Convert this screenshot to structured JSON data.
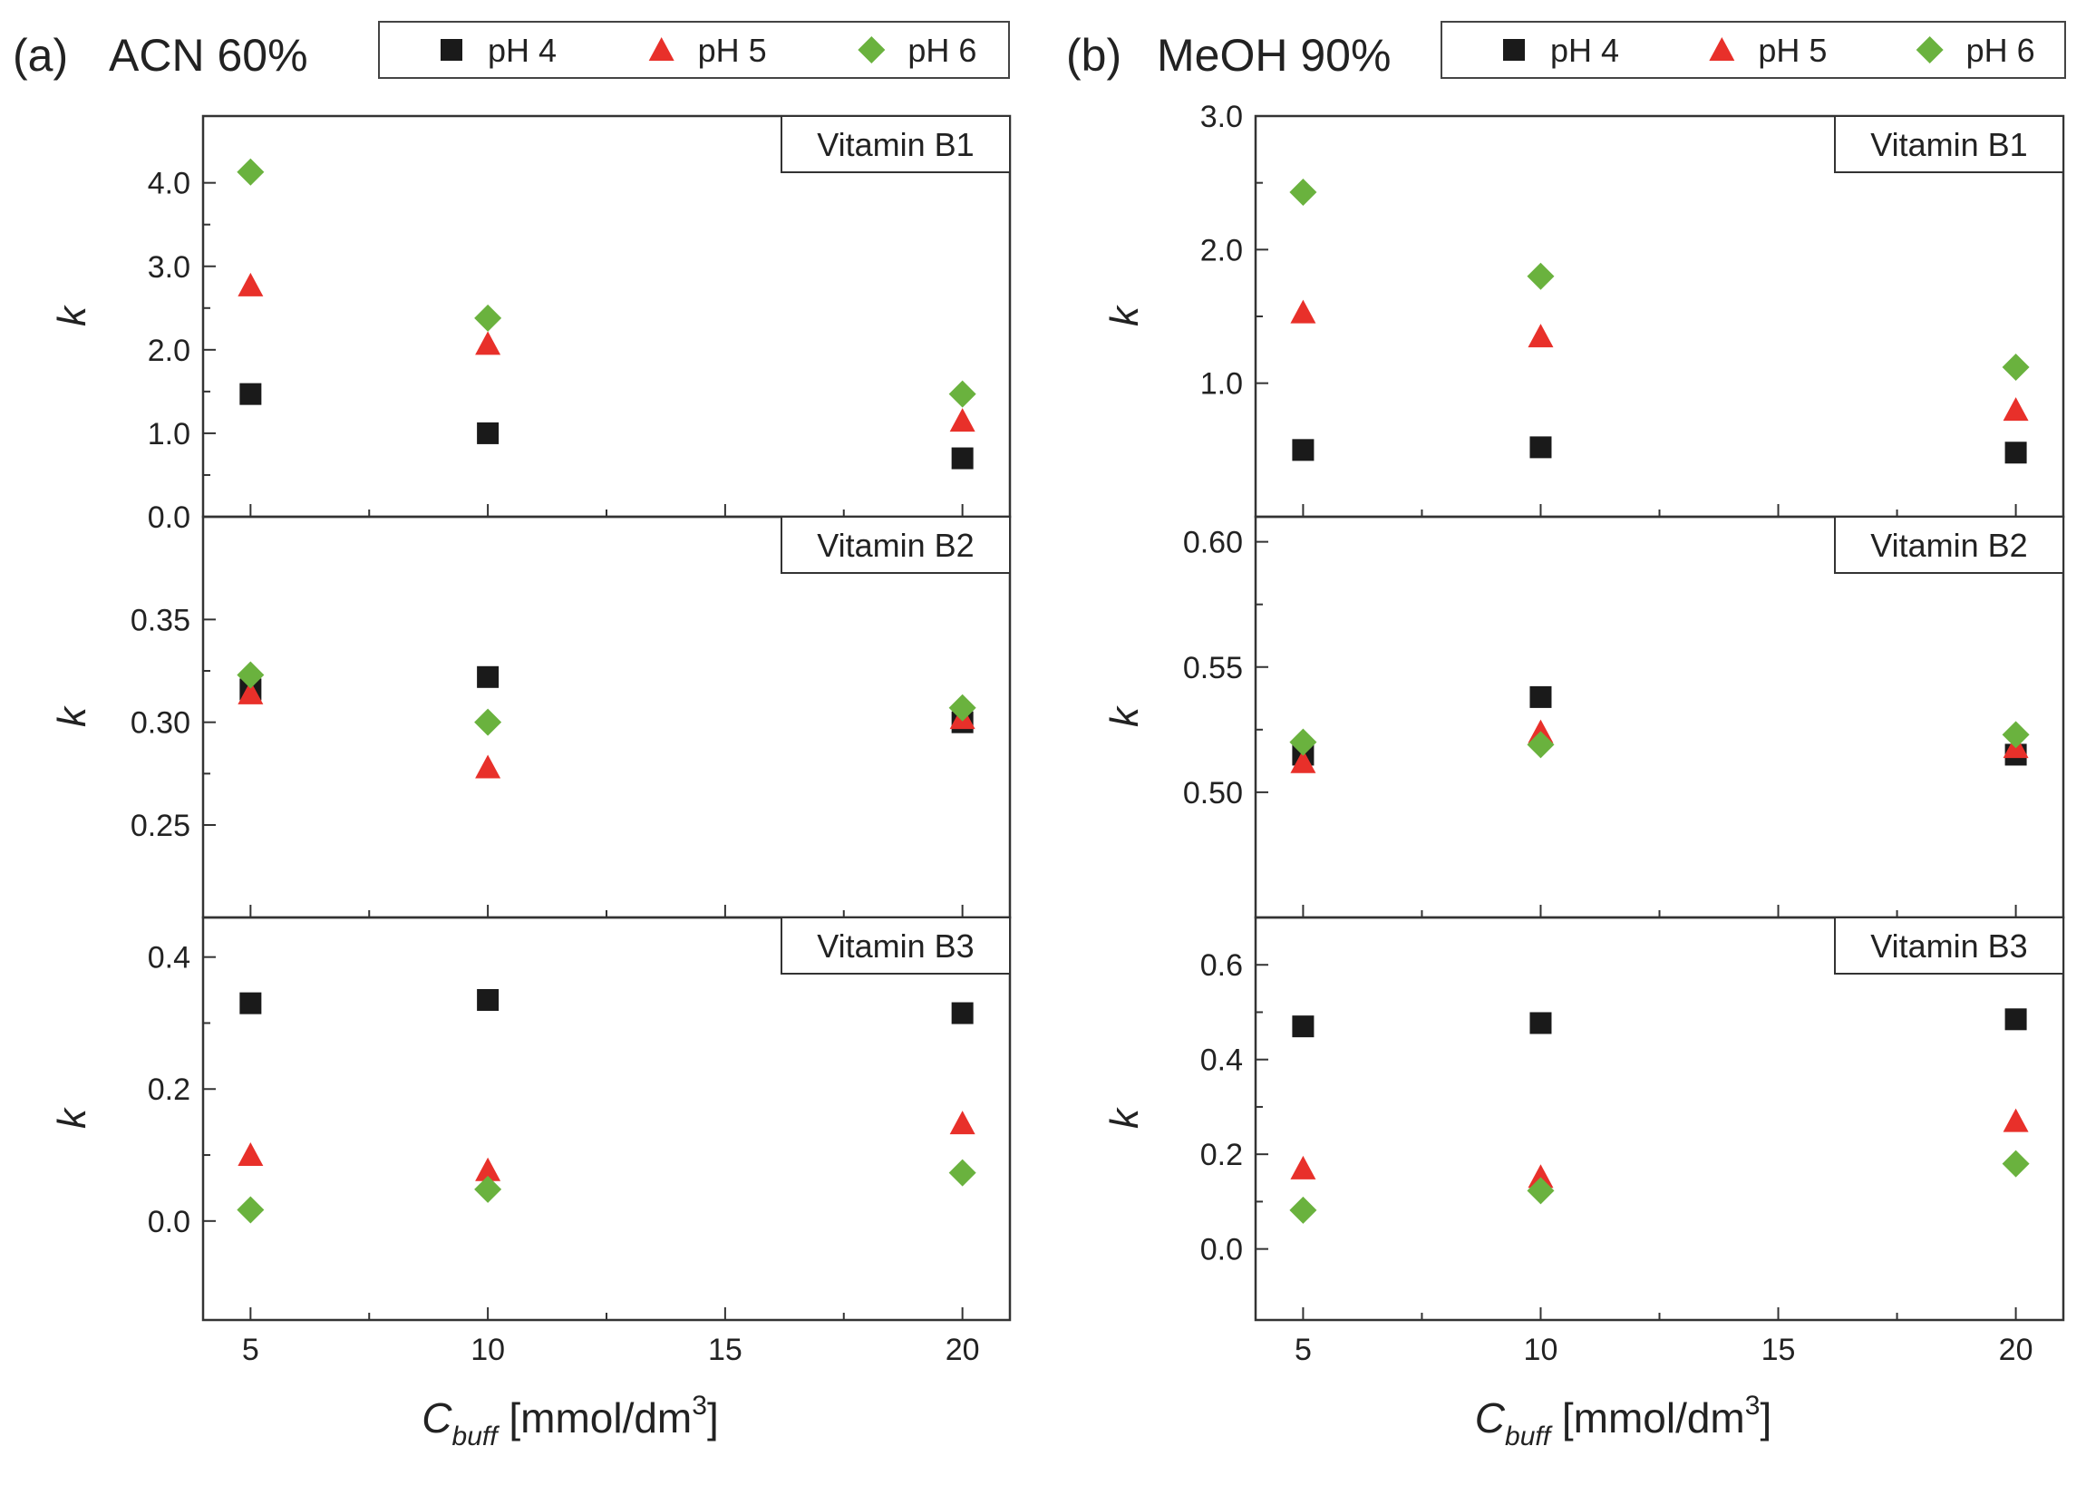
{
  "figure": {
    "x_label_main": "C",
    "x_label_sub": "buff",
    "x_label_unit": " [mmol/dm",
    "x_label_sup": "3",
    "x_label_close": "]",
    "y_label": "k"
  },
  "legend": {
    "entries": [
      {
        "label": "pH 4",
        "marker": "square",
        "color": "#1a1a1a"
      },
      {
        "label": "pH 5",
        "marker": "triangle",
        "color": "#e8302a"
      },
      {
        "label": "pH 6",
        "marker": "diamond",
        "color": "#6ab23e"
      }
    ]
  },
  "chart_data": [
    {
      "type": "scatter",
      "panel": "(a)",
      "title": "ACN 60%",
      "x_ticks": [
        5,
        10,
        15,
        20
      ],
      "x_tick_labels": [
        "5",
        "10",
        "15",
        "20"
      ],
      "xlim": [
        4,
        21
      ],
      "subplots": [
        {
          "label": "Vitamin B1",
          "ylim": [
            0,
            4.8
          ],
          "y_ticks": [
            0,
            1,
            2,
            3,
            4
          ],
          "y_tick_labels": [
            "0.0",
            "1.0",
            "2.0",
            "3.0",
            "4.0"
          ],
          "x": [
            5,
            10,
            20
          ],
          "series": [
            {
              "name": "pH 4",
              "values": [
                1.47,
                1.0,
                0.7
              ]
            },
            {
              "name": "pH 5",
              "values": [
                2.77,
                2.07,
                1.15
              ]
            },
            {
              "name": "pH 6",
              "values": [
                4.13,
                2.38,
                1.47
              ]
            }
          ]
        },
        {
          "label": "Vitamin B2",
          "ylim": [
            0.205,
            0.4
          ],
          "y_ticks": [
            0.25,
            0.3,
            0.35
          ],
          "y_tick_labels": [
            "0.25",
            "0.30",
            "0.35"
          ],
          "x": [
            5,
            10,
            20
          ],
          "series": [
            {
              "name": "pH 4",
              "values": [
                0.316,
                0.322,
                0.3
              ]
            },
            {
              "name": "pH 5",
              "values": [
                0.314,
                0.278,
                0.302
              ]
            },
            {
              "name": "pH 6",
              "values": [
                0.323,
                0.3,
                0.307
              ]
            }
          ]
        },
        {
          "label": "Vitamin B3",
          "ylim": [
            -0.15,
            0.46
          ],
          "y_ticks": [
            0,
            0.2,
            0.4
          ],
          "y_tick_labels": [
            "0.0",
            "0.2",
            "0.4"
          ],
          "x": [
            5,
            10,
            20
          ],
          "series": [
            {
              "name": "pH 4",
              "values": [
                0.33,
                0.335,
                0.315
              ]
            },
            {
              "name": "pH 5",
              "values": [
                0.1,
                0.077,
                0.148
              ]
            },
            {
              "name": "pH 6",
              "values": [
                0.017,
                0.048,
                0.073
              ]
            }
          ]
        }
      ]
    },
    {
      "type": "scatter",
      "panel": "(b)",
      "title": "MeOH 90%",
      "x_ticks": [
        5,
        10,
        15,
        20
      ],
      "x_tick_labels": [
        "5",
        "10",
        "15",
        "20"
      ],
      "xlim": [
        4,
        21
      ],
      "subplots": [
        {
          "label": "Vitamin B1",
          "ylim": [
            0,
            3.0
          ],
          "y_ticks": [
            1,
            2,
            3
          ],
          "y_tick_labels": [
            "1.0",
            "2.0",
            "3.0"
          ],
          "x": [
            5,
            10,
            20
          ],
          "series": [
            {
              "name": "pH 4",
              "values": [
                0.5,
                0.52,
                0.48
              ]
            },
            {
              "name": "pH 5",
              "values": [
                1.53,
                1.35,
                0.8
              ]
            },
            {
              "name": "pH 6",
              "values": [
                2.43,
                1.8,
                1.12
              ]
            }
          ]
        },
        {
          "label": "Vitamin B2",
          "ylim": [
            0.45,
            0.61
          ],
          "y_ticks": [
            0.5,
            0.55,
            0.6
          ],
          "y_tick_labels": [
            "0.50",
            "0.55",
            "0.60"
          ],
          "x": [
            5,
            10,
            20
          ],
          "series": [
            {
              "name": "pH 4",
              "values": [
                0.515,
                0.538,
                0.515
              ]
            },
            {
              "name": "pH 5",
              "values": [
                0.512,
                0.524,
                0.518
              ]
            },
            {
              "name": "pH 6",
              "values": [
                0.52,
                0.519,
                0.523
              ]
            }
          ]
        },
        {
          "label": "Vitamin B3",
          "ylim": [
            -0.15,
            0.7
          ],
          "y_ticks": [
            0,
            0.2,
            0.4,
            0.6
          ],
          "y_tick_labels": [
            "0.0",
            "0.2",
            "0.4",
            "0.6"
          ],
          "x": [
            5,
            10,
            20
          ],
          "series": [
            {
              "name": "pH 4",
              "values": [
                0.47,
                0.477,
                0.485
              ]
            },
            {
              "name": "pH 5",
              "values": [
                0.17,
                0.152,
                0.27
              ]
            },
            {
              "name": "pH 6",
              "values": [
                0.082,
                0.123,
                0.18
              ]
            }
          ]
        }
      ]
    }
  ]
}
